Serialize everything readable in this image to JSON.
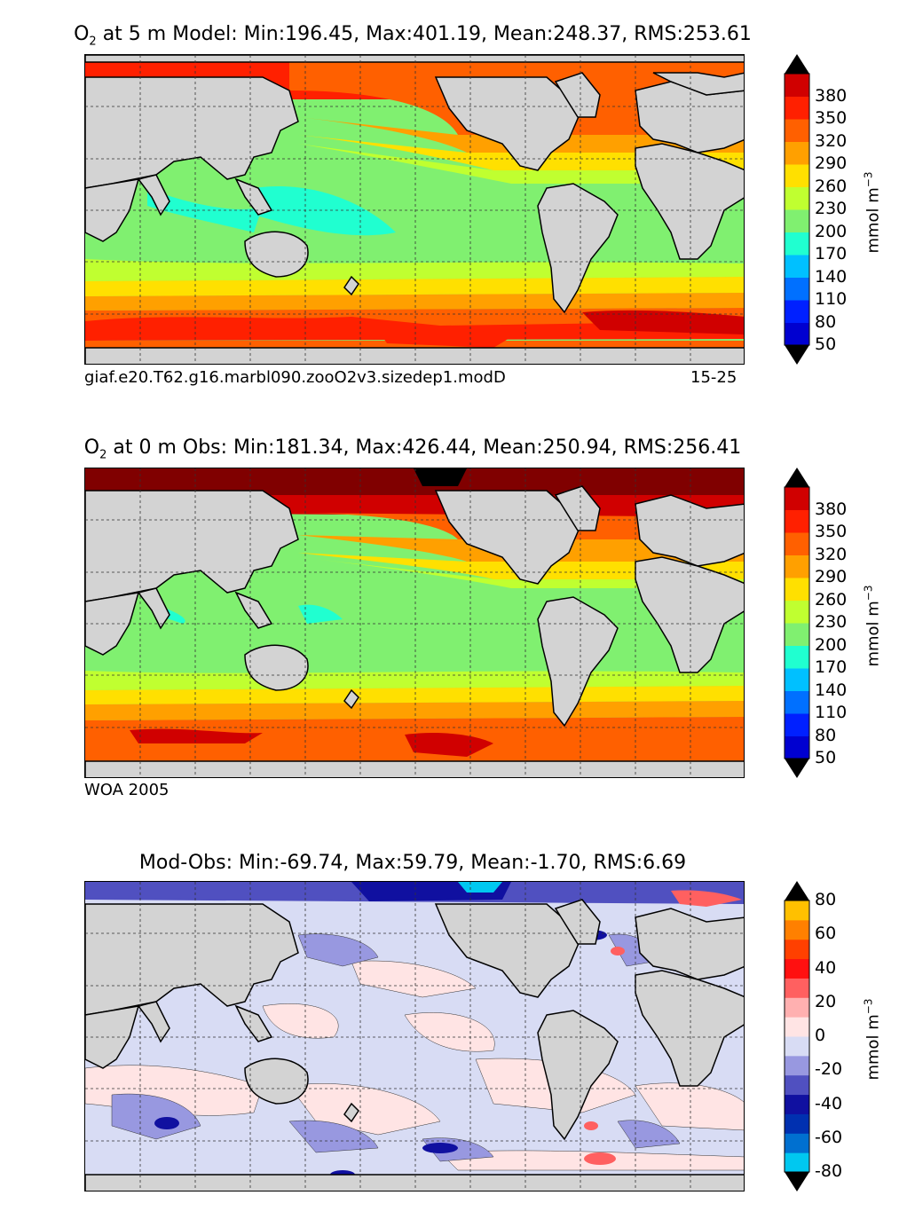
{
  "panels": [
    {
      "title_var": "O",
      "title_sub": "2",
      "title_rest": "at 5 m Model: Min:196.45, Max:401.19, Mean:248.37, RMS:253.61",
      "caption_left": "giaf.e20.T62.g16.marbl090.zooO2v3.sizedep1.modD",
      "caption_right": "15-25",
      "colorbar": {
        "ticks": [
          "380",
          "350",
          "320",
          "290",
          "260",
          "230",
          "200",
          "170",
          "140",
          "110",
          "80",
          "50"
        ],
        "unit": "mmol m",
        "unit_sup": "−3",
        "colors": [
          "#000080",
          "#0000d0",
          "#0020ff",
          "#0070ff",
          "#00c0ff",
          "#20ffd0",
          "#80f070",
          "#c0ff30",
          "#ffe000",
          "#ffa000",
          "#ff6000",
          "#ff2000",
          "#d00000",
          "#800000"
        ]
      }
    },
    {
      "title_var": "O",
      "title_sub": "2",
      "title_rest": "at 0 m Obs: Min:181.34, Max:426.44, Mean:250.94, RMS:256.41",
      "caption_left": "WOA 2005",
      "caption_right": "",
      "colorbar": {
        "ticks": [
          "380",
          "350",
          "320",
          "290",
          "260",
          "230",
          "200",
          "170",
          "140",
          "110",
          "80",
          "50"
        ],
        "unit": "mmol m",
        "unit_sup": "−3",
        "colors": [
          "#000080",
          "#0000d0",
          "#0020ff",
          "#0070ff",
          "#00c0ff",
          "#20ffd0",
          "#80f070",
          "#c0ff30",
          "#ffe000",
          "#ffa000",
          "#ff6000",
          "#ff2000",
          "#d00000",
          "#800000"
        ]
      }
    },
    {
      "title_var": "",
      "title_sub": "",
      "title_rest": "Mod-Obs: Min:-69.74, Max:59.79, Mean:-1.70, RMS:6.69",
      "caption_left": "",
      "caption_right": "",
      "colorbar": {
        "ticks": [
          "80",
          "60",
          "40",
          "20",
          "0",
          "-20",
          "-40",
          "-60",
          "-80"
        ],
        "unit": "mmol m",
        "unit_sup": "−3",
        "colors": [
          "#00ffff",
          "#00c8f0",
          "#0070d0",
          "#0030b0",
          "#1010a0",
          "#5050c0",
          "#9898e0",
          "#d8dcf4",
          "#ffe4e4",
          "#ffb0b0",
          "#ff6060",
          "#ff1010",
          "#ff4000",
          "#ff8000",
          "#ffc000",
          "#ffff20"
        ]
      }
    }
  ],
  "colors": {
    "land": "#d3d3d3",
    "grid": "#333333"
  }
}
